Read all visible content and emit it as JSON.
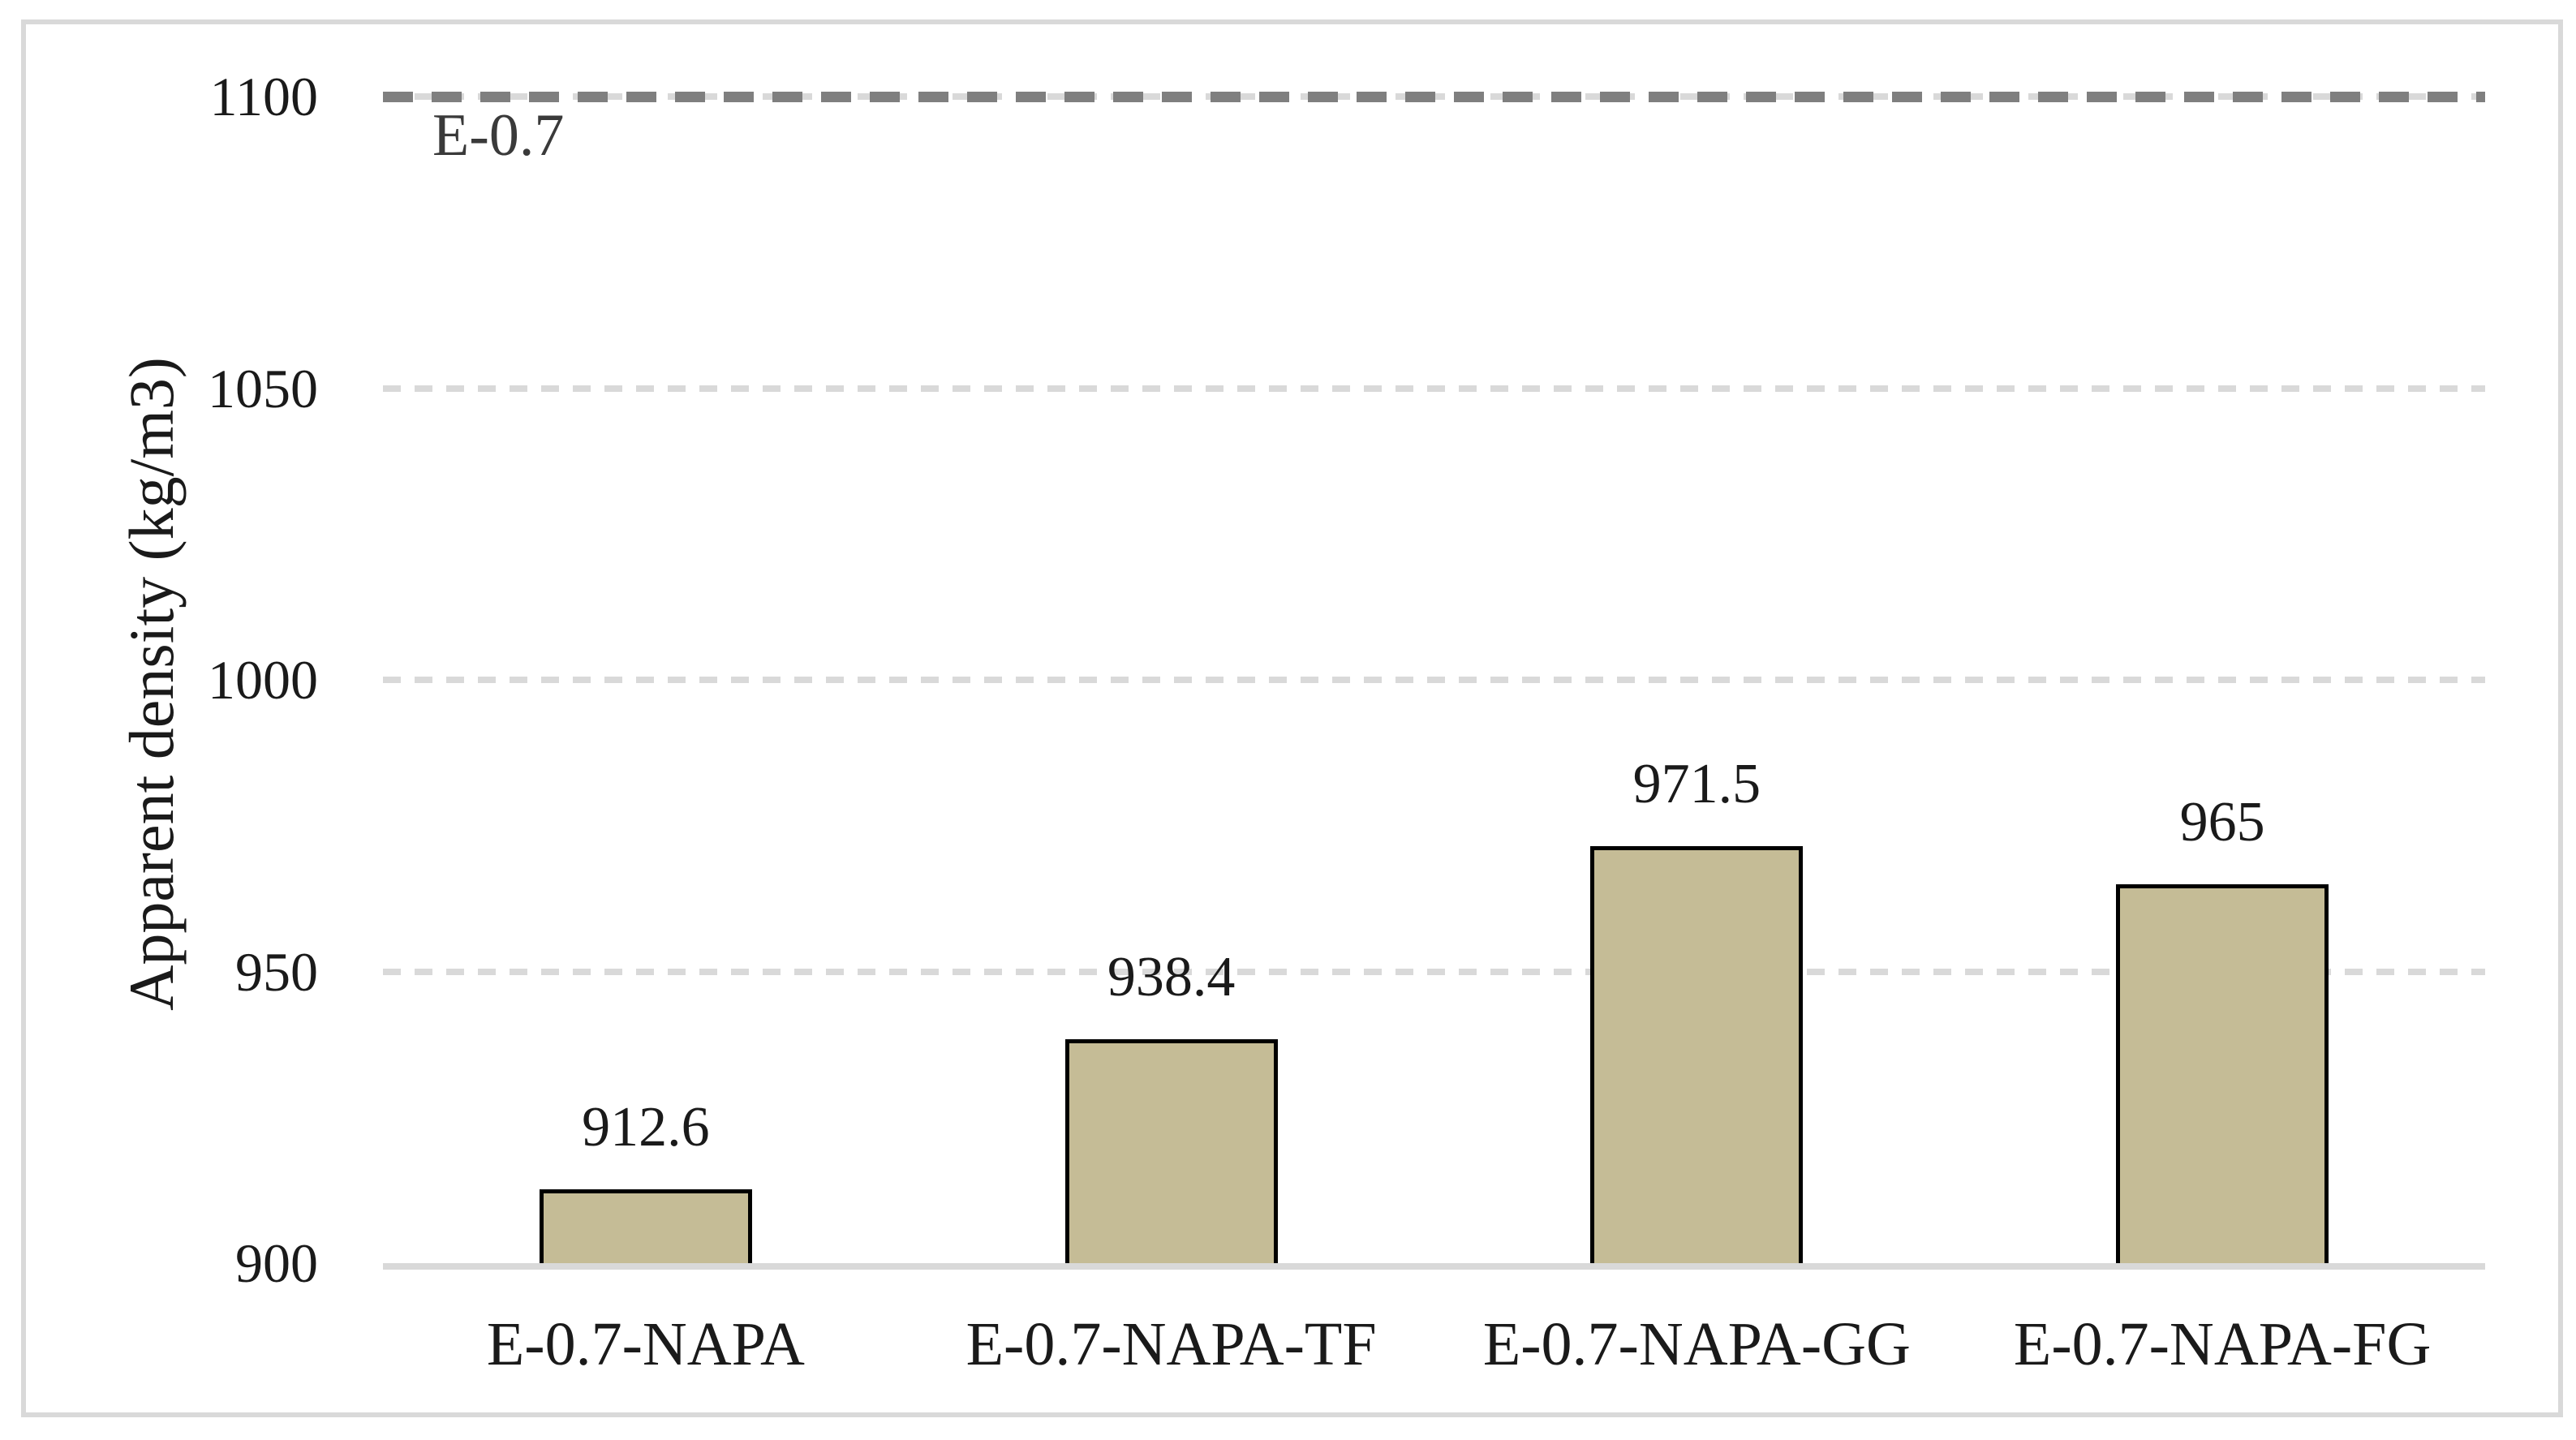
{
  "chart_data": {
    "type": "bar",
    "title": "",
    "xlabel": "",
    "ylabel": "Apparent density (kg/m3)",
    "ylim": [
      900,
      1100
    ],
    "yticks": [
      900,
      950,
      1000,
      1050,
      1100
    ],
    "ytick_labels": [
      "900",
      "950",
      "1000",
      "1050",
      "1100"
    ],
    "grid": "horizontal dashed major gridlines",
    "legend_position": "none",
    "categories": [
      "E-0.7-NAPA",
      "E-0.7-NAPA-TF",
      "E-0.7-NAPA-GG",
      "E-0.7-NAPA-FG"
    ],
    "values": [
      912.6,
      938.4,
      971.5,
      965
    ],
    "data_labels": [
      "912.6",
      "938.4",
      "971.5",
      "965"
    ],
    "reference_line": {
      "label": "E-0.7",
      "value": 1100,
      "style": "dashed"
    },
    "colors": {
      "bar_fill": "#C5BC96",
      "bar_border": "#000000",
      "gridline": "#D9D9D9",
      "axis_line": "#D9D9D9",
      "reference_line": "#7F7F7F",
      "text": "#1A1A1A",
      "reference_label_text": "#3A3A3A",
      "frame_border": "#D9D9D9",
      "background": "#FFFFFF"
    }
  }
}
